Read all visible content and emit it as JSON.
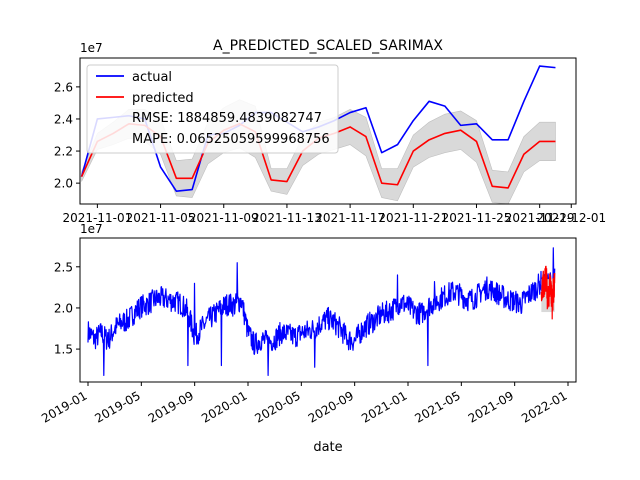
{
  "chart_data": [
    {
      "type": "line",
      "title": "A_PREDICTED_SCALED_SARIMAX",
      "offset_label": "1e7",
      "xlabel": "",
      "ylabel": "",
      "ylim": [
        1.87,
        2.78
      ],
      "yticks": [
        2.0,
        2.2,
        2.4,
        2.6
      ],
      "ytick_labels": [
        "2.0",
        "2.2",
        "2.4",
        "2.6"
      ],
      "x_tick_labels": [
        "2021-11-01",
        "2021-11-05",
        "2021-11-09",
        "2021-11-13",
        "2021-11-17",
        "2021-11-21",
        "2021-11-25",
        "2021-11-29",
        "2021-12-01"
      ],
      "x_tick_days": [
        1,
        5,
        9,
        13,
        17,
        21,
        25,
        29,
        31
      ],
      "xlim_days": [
        -0.1,
        31.3
      ],
      "grid": false,
      "legend": {
        "placement": "top-left",
        "entries": [
          {
            "label": "actual",
            "color": "#0000ff"
          },
          {
            "label": "predicted",
            "color": "#ff0000"
          },
          {
            "label": "RMSE: 1884859.4839082747",
            "color": ""
          },
          {
            "label": "MAPE: 0.06525059599968756",
            "color": ""
          }
        ]
      },
      "series": [
        {
          "name": "actual",
          "color": "#0000ff",
          "x_days": [
            0,
            1,
            2,
            3,
            4,
            5,
            6,
            7,
            8,
            9,
            10,
            11,
            12,
            13,
            14,
            15,
            16,
            17,
            18,
            19,
            20,
            21,
            22,
            23,
            24,
            25,
            26,
            27,
            28,
            29,
            30
          ],
          "values": [
            2.04,
            2.4,
            2.41,
            2.42,
            2.4,
            2.1,
            1.95,
            1.96,
            2.3,
            2.31,
            2.36,
            2.44,
            2.44,
            2.38,
            2.32,
            2.35,
            2.39,
            2.44,
            2.47,
            2.19,
            2.24,
            2.39,
            2.51,
            2.48,
            2.36,
            2.37,
            2.27,
            2.27,
            2.51,
            2.73,
            2.72
          ]
        },
        {
          "name": "predicted",
          "color": "#ff0000",
          "x_days": [
            0,
            1,
            2,
            3,
            4,
            5,
            6,
            7,
            8,
            9,
            10,
            11,
            12,
            13,
            14,
            15,
            16,
            17,
            18,
            19,
            20,
            21,
            22,
            23,
            24,
            25,
            26,
            27,
            28,
            29,
            30
          ],
          "values": [
            2.04,
            2.26,
            2.31,
            2.37,
            2.36,
            2.29,
            2.03,
            2.03,
            2.25,
            2.33,
            2.37,
            2.32,
            2.02,
            2.01,
            2.2,
            2.28,
            2.31,
            2.35,
            2.29,
            2.0,
            1.99,
            2.2,
            2.27,
            2.31,
            2.33,
            2.26,
            1.98,
            1.97,
            2.18,
            2.26,
            2.26
          ],
          "ci_lower": [
            2.01,
            2.21,
            2.24,
            2.28,
            2.26,
            2.18,
            1.92,
            1.91,
            2.12,
            2.19,
            2.22,
            2.16,
            1.95,
            1.93,
            2.11,
            2.18,
            2.21,
            2.24,
            2.17,
            1.91,
            1.89,
            2.1,
            2.16,
            2.19,
            2.21,
            2.13,
            1.88,
            1.87,
            2.07,
            2.14,
            2.14
          ],
          "ci_upper": [
            2.07,
            2.31,
            2.38,
            2.46,
            2.46,
            2.4,
            2.14,
            2.15,
            2.38,
            2.47,
            2.52,
            2.48,
            2.09,
            2.09,
            2.29,
            2.38,
            2.41,
            2.46,
            2.41,
            2.09,
            2.09,
            2.3,
            2.38,
            2.43,
            2.45,
            2.39,
            2.08,
            2.07,
            2.29,
            2.38,
            2.38
          ]
        }
      ]
    },
    {
      "type": "line",
      "offset_label": "1e7",
      "xlabel": "date",
      "ylabel": "",
      "ylim": [
        1.1,
        2.85
      ],
      "yticks": [
        1.5,
        2.0,
        2.5
      ],
      "ytick_labels": [
        "1.5",
        "2.0",
        "2.5"
      ],
      "x_tick_labels": [
        "2019-01",
        "2019-05",
        "2019-09",
        "2020-01",
        "2020-05",
        "2020-09",
        "2021-01",
        "2021-05",
        "2021-09",
        "2022-01"
      ],
      "x_tick_months": [
        0,
        4,
        8,
        12,
        16,
        20,
        24,
        28,
        32,
        36
      ],
      "xlim_months": [
        -0.6,
        36.6
      ],
      "grid": false,
      "series": [
        {
          "name": "actual",
          "color": "#0000ff",
          "x_months": [
            0.0,
            0.5,
            1.0,
            1.5,
            2.0,
            2.5,
            3.0,
            3.5,
            4.0,
            4.5,
            5.0,
            5.5,
            6.0,
            6.5,
            7.0,
            7.5,
            8.0,
            8.5,
            9.0,
            9.5,
            10.0,
            10.5,
            11.0,
            11.5,
            12.0,
            12.5,
            13.0,
            13.5,
            14.0,
            14.5,
            15.0,
            15.5,
            16.0,
            16.5,
            17.0,
            17.5,
            18.0,
            18.5,
            19.0,
            19.5,
            20.0,
            20.5,
            21.0,
            21.5,
            22.0,
            22.5,
            23.0,
            23.5,
            24.0,
            24.5,
            25.0,
            25.5,
            26.0,
            26.5,
            27.0,
            27.5,
            28.0,
            28.5,
            29.0,
            29.5,
            30.0,
            30.5,
            31.0,
            31.5,
            32.0,
            32.5,
            33.0,
            33.5,
            34.0,
            34.5,
            35.0
          ],
          "values": [
            1.72,
            1.62,
            1.7,
            1.6,
            1.75,
            1.82,
            1.85,
            1.95,
            2.02,
            2.05,
            2.1,
            2.12,
            2.1,
            2.08,
            2.05,
            1.95,
            1.65,
            1.75,
            1.85,
            1.92,
            2.0,
            2.05,
            2.03,
            2.1,
            1.7,
            1.55,
            1.62,
            1.58,
            1.62,
            1.7,
            1.68,
            1.65,
            1.7,
            1.72,
            1.75,
            1.82,
            1.87,
            1.82,
            1.73,
            1.62,
            1.6,
            1.72,
            1.8,
            1.85,
            1.92,
            1.95,
            2.0,
            2.07,
            2.02,
            1.95,
            1.93,
            2.02,
            2.07,
            2.12,
            2.17,
            2.2,
            2.15,
            2.1,
            2.12,
            2.2,
            2.25,
            2.2,
            2.15,
            2.1,
            2.08,
            2.05,
            2.15,
            2.22,
            2.32,
            2.3,
            2.35
          ],
          "spikes": [
            {
              "x": 1.2,
              "y": 1.18
            },
            {
              "x": 1.5,
              "y": 1.7
            },
            {
              "x": 7.5,
              "y": 1.3
            },
            {
              "x": 8.0,
              "y": 2.3
            },
            {
              "x": 10.0,
              "y": 1.3
            },
            {
              "x": 11.2,
              "y": 2.55
            },
            {
              "x": 13.5,
              "y": 1.18
            },
            {
              "x": 17.0,
              "y": 1.28
            },
            {
              "x": 23.2,
              "y": 2.4
            },
            {
              "x": 25.5,
              "y": 1.3
            },
            {
              "x": 26.0,
              "y": 2.32
            },
            {
              "x": 34.9,
              "y": 2.73
            }
          ],
          "noise_amplitude": 0.28
        },
        {
          "name": "predicted",
          "color": "#ff0000",
          "x_months": [
            34.0,
            34.1,
            34.2,
            34.3,
            34.4,
            34.5,
            34.6,
            34.7,
            34.8,
            34.9,
            35.0
          ],
          "values": [
            2.04,
            2.26,
            2.31,
            2.37,
            2.29,
            2.03,
            2.25,
            2.33,
            2.02,
            2.2,
            2.26
          ],
          "noise_amplitude": 0.38
        }
      ]
    }
  ]
}
